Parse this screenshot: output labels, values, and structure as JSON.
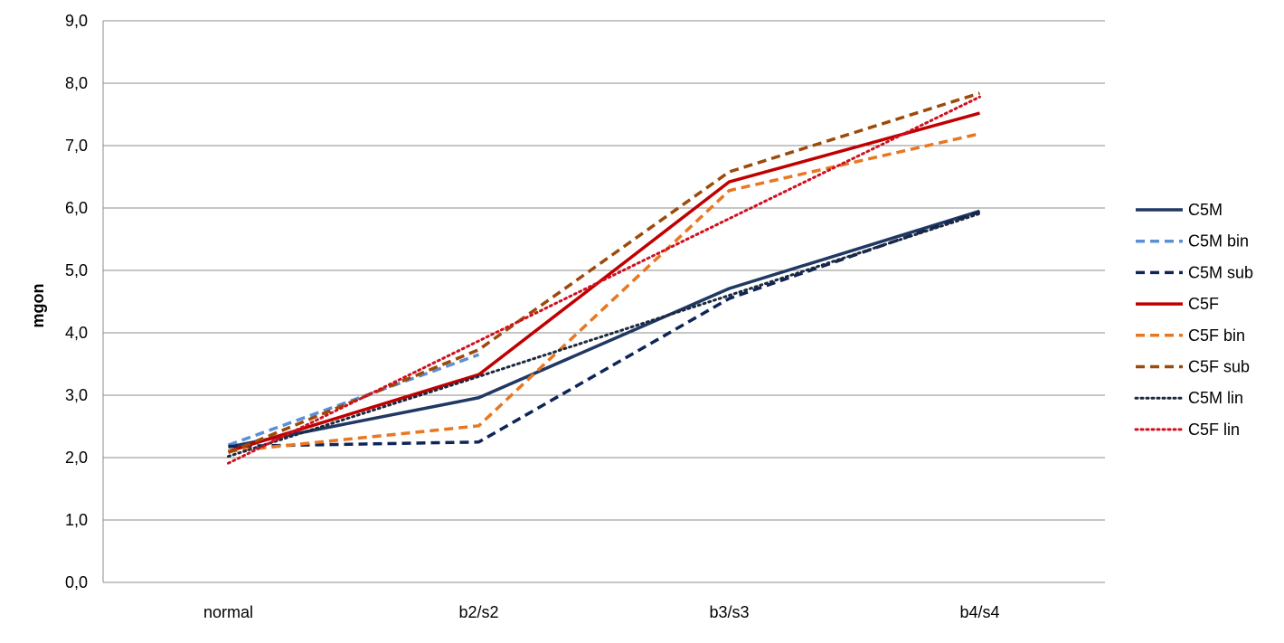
{
  "chart_data": {
    "type": "line",
    "title": "",
    "xlabel": "",
    "ylabel": "mgon",
    "categories": [
      "normal",
      "b2/s2",
      "b3/s3",
      "b4/s4"
    ],
    "ylim": [
      0,
      9
    ],
    "yticks": [
      "0,0",
      "1,0",
      "2,0",
      "3,0",
      "4,0",
      "5,0",
      "6,0",
      "7,0",
      "8,0",
      "9,0"
    ],
    "grid": true,
    "legend_position": "right",
    "series": [
      {
        "name": "C5M",
        "color": "#1F3864",
        "style": "solid",
        "values": [
          2.17,
          2.96,
          4.71,
          5.95
        ]
      },
      {
        "name": "C5M bin",
        "color": "#5B8FD6",
        "style": "dashed",
        "values": [
          2.2,
          3.65,
          null,
          null
        ]
      },
      {
        "name": "C5M sub",
        "color": "#0E2557",
        "style": "dashed",
        "values": [
          2.18,
          2.25,
          4.55,
          5.94
        ]
      },
      {
        "name": "C5F",
        "color": "#C00000",
        "style": "solid",
        "values": [
          2.1,
          3.33,
          6.42,
          7.52
        ]
      },
      {
        "name": "C5F bin",
        "color": "#E87722",
        "style": "dashed",
        "values": [
          2.1,
          2.51,
          6.28,
          7.19
        ]
      },
      {
        "name": "C5F sub",
        "color": "#9C4A0A",
        "style": "dashed",
        "values": [
          2.08,
          3.73,
          6.58,
          7.84
        ]
      },
      {
        "name": "C5M lin",
        "color": "#1C2A3E",
        "style": "dotted",
        "values": [
          2.02,
          3.3,
          4.6,
          5.91
        ]
      },
      {
        "name": "C5F lin",
        "color": "#D0101E",
        "style": "dotted",
        "values": [
          1.91,
          3.87,
          5.83,
          7.78
        ]
      }
    ]
  }
}
